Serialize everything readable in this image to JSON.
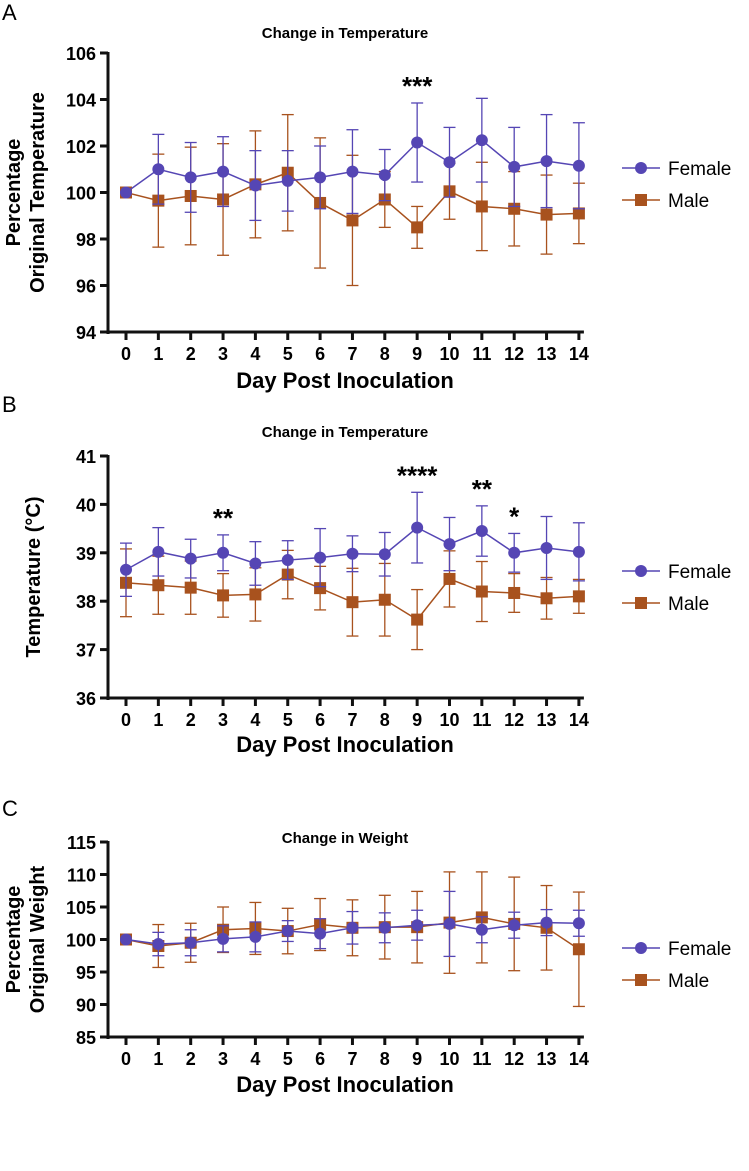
{
  "colors": {
    "female": "#5546B4",
    "male": "#A8521E",
    "axis": "#111111"
  },
  "chart_data": [
    {
      "panel": "A",
      "type": "line",
      "title": "Change in Temperature",
      "xlabel": "Day Post Inoculation",
      "ylabel": [
        "Percentage",
        "Original Temperature"
      ],
      "ylim": [
        94,
        106
      ],
      "yticks": [
        94,
        96,
        98,
        100,
        102,
        104,
        106
      ],
      "x": [
        0,
        1,
        2,
        3,
        4,
        5,
        6,
        7,
        8,
        9,
        10,
        11,
        12,
        13,
        14
      ],
      "legend": "right",
      "series": [
        {
          "name": "Female",
          "marker": "circle",
          "values": [
            100,
            101.0,
            100.65,
            100.9,
            100.3,
            100.5,
            100.65,
            100.9,
            100.75,
            102.15,
            101.3,
            102.25,
            101.1,
            101.35,
            101.15
          ],
          "error": [
            0,
            1.5,
            1.5,
            1.5,
            1.5,
            1.3,
            1.35,
            1.8,
            1.1,
            1.7,
            1.5,
            1.8,
            1.7,
            2.0,
            1.85
          ]
        },
        {
          "name": "Male",
          "marker": "square",
          "values": [
            100,
            99.65,
            99.85,
            99.7,
            100.35,
            100.85,
            99.55,
            98.8,
            99.7,
            98.5,
            100.05,
            99.4,
            99.3,
            99.05,
            99.1
          ],
          "error": [
            0,
            2.0,
            2.1,
            2.4,
            2.3,
            2.5,
            2.8,
            2.8,
            1.2,
            0.9,
            1.2,
            1.9,
            1.6,
            1.7,
            1.3
          ]
        }
      ],
      "annotations": [
        {
          "x": 9,
          "text": "***"
        }
      ]
    },
    {
      "panel": "B",
      "type": "line",
      "title": "Change in Temperature",
      "xlabel": "Day Post Inoculation",
      "ylabel": [
        "Temperature (°C)"
      ],
      "ylim": [
        36,
        41
      ],
      "yticks": [
        36,
        37,
        38,
        39,
        40,
        41
      ],
      "x": [
        0,
        1,
        2,
        3,
        4,
        5,
        6,
        7,
        8,
        9,
        10,
        11,
        12,
        13,
        14
      ],
      "legend": "right",
      "series": [
        {
          "name": "Female",
          "marker": "circle",
          "values": [
            38.65,
            39.02,
            38.88,
            39.0,
            38.78,
            38.85,
            38.9,
            38.98,
            38.97,
            39.52,
            39.18,
            39.45,
            39.0,
            39.1,
            39.02
          ],
          "error": [
            0.55,
            0.5,
            0.4,
            0.37,
            0.45,
            0.4,
            0.6,
            0.37,
            0.45,
            0.73,
            0.55,
            0.52,
            0.4,
            0.65,
            0.6
          ]
        },
        {
          "name": "Male",
          "marker": "square",
          "values": [
            38.38,
            38.33,
            38.28,
            38.12,
            38.14,
            38.55,
            38.27,
            37.98,
            38.03,
            37.62,
            38.46,
            38.2,
            38.17,
            38.06,
            38.1
          ],
          "error": [
            0.7,
            0.6,
            0.55,
            0.45,
            0.55,
            0.5,
            0.45,
            0.7,
            0.75,
            0.62,
            0.58,
            0.62,
            0.4,
            0.43,
            0.35
          ]
        }
      ],
      "annotations": [
        {
          "x": 3,
          "text": "**"
        },
        {
          "x": 9,
          "text": "****"
        },
        {
          "x": 11,
          "text": "**"
        },
        {
          "x": 12,
          "text": "*"
        }
      ]
    },
    {
      "panel": "C",
      "type": "line",
      "title": "Change in Weight",
      "xlabel": "Day Post Inoculation",
      "ylabel": [
        "Percentage",
        "Original Weight"
      ],
      "ylim": [
        85,
        115
      ],
      "yticks": [
        85,
        90,
        95,
        100,
        105,
        110,
        115
      ],
      "x": [
        0,
        1,
        2,
        3,
        4,
        5,
        6,
        7,
        8,
        9,
        10,
        11,
        12,
        13,
        14
      ],
      "legend": "right",
      "series": [
        {
          "name": "Female",
          "marker": "circle",
          "values": [
            100,
            99.3,
            99.5,
            100.1,
            100.4,
            101.3,
            100.9,
            101.8,
            101.8,
            102.2,
            102.4,
            101.5,
            102.2,
            102.6,
            102.5
          ],
          "error": [
            0,
            1.8,
            2.0,
            2.0,
            2.3,
            1.6,
            2.3,
            2.5,
            2.3,
            2.3,
            5.0,
            2.0,
            2.0,
            2.0,
            2.0
          ]
        },
        {
          "name": "Male",
          "marker": "square",
          "values": [
            100,
            99.0,
            99.5,
            101.5,
            101.7,
            101.3,
            102.3,
            101.8,
            101.9,
            101.9,
            102.6,
            103.4,
            102.4,
            101.8,
            98.5
          ],
          "error": [
            0,
            3.3,
            3.0,
            3.5,
            4.0,
            3.5,
            4.0,
            4.3,
            4.9,
            5.5,
            7.8,
            7.0,
            7.2,
            6.5,
            8.8
          ]
        }
      ],
      "annotations": []
    }
  ]
}
